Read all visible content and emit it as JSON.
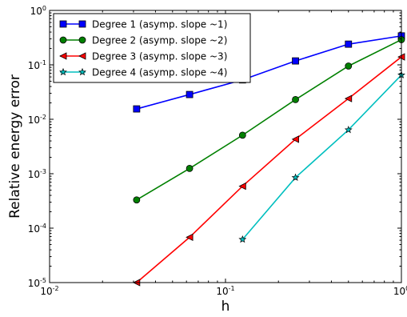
{
  "chart_data": {
    "type": "line",
    "xscale": "log",
    "yscale": "log",
    "xlim": [
      0.01,
      1
    ],
    "ylim": [
      1e-05,
      1
    ],
    "xlabel": "h",
    "ylabel": "Relative energy error",
    "grid": false,
    "legend_position": "top-left",
    "x_ticks": [
      {
        "base": "10",
        "exp": "-2"
      },
      {
        "base": "10",
        "exp": "-1"
      },
      {
        "base": "10",
        "exp": "0"
      }
    ],
    "y_ticks": [
      {
        "base": "10",
        "exp": "-5"
      },
      {
        "base": "10",
        "exp": "-4"
      },
      {
        "base": "10",
        "exp": "-3"
      },
      {
        "base": "10",
        "exp": "-2"
      },
      {
        "base": "10",
        "exp": "-1"
      },
      {
        "base": "10",
        "exp": "0"
      }
    ],
    "series": [
      {
        "name": "Degree 1 (asymp. slope ~1)",
        "color": "#0000ff",
        "marker": "square",
        "x": [
          0.03125,
          0.0625,
          0.125,
          0.25,
          0.5,
          1
        ],
        "y": [
          0.0155,
          0.0285,
          0.053,
          0.118,
          0.24,
          0.34
        ]
      },
      {
        "name": "Degree 2 (asymp. slope ~2)",
        "color": "#008000",
        "marker": "circle",
        "x": [
          0.03125,
          0.0625,
          0.125,
          0.25,
          0.5,
          1
        ],
        "y": [
          0.00033,
          0.00125,
          0.0051,
          0.023,
          0.095,
          0.29
        ]
      },
      {
        "name": "Degree 3 (asymp. slope ~3)",
        "color": "#ff0000",
        "marker": "triangle-left",
        "x": [
          0.03125,
          0.0625,
          0.125,
          0.25,
          0.5,
          1
        ],
        "y": [
          1e-05,
          6.8e-05,
          0.00059,
          0.0043,
          0.024,
          0.14
        ]
      },
      {
        "name": "Degree 4 (asymp. slope ~4)",
        "color": "#00bfbf",
        "marker": "star",
        "x": [
          0.125,
          0.25,
          0.5,
          1
        ],
        "y": [
          6.2e-05,
          0.00085,
          0.0064,
          0.065
        ]
      }
    ]
  }
}
